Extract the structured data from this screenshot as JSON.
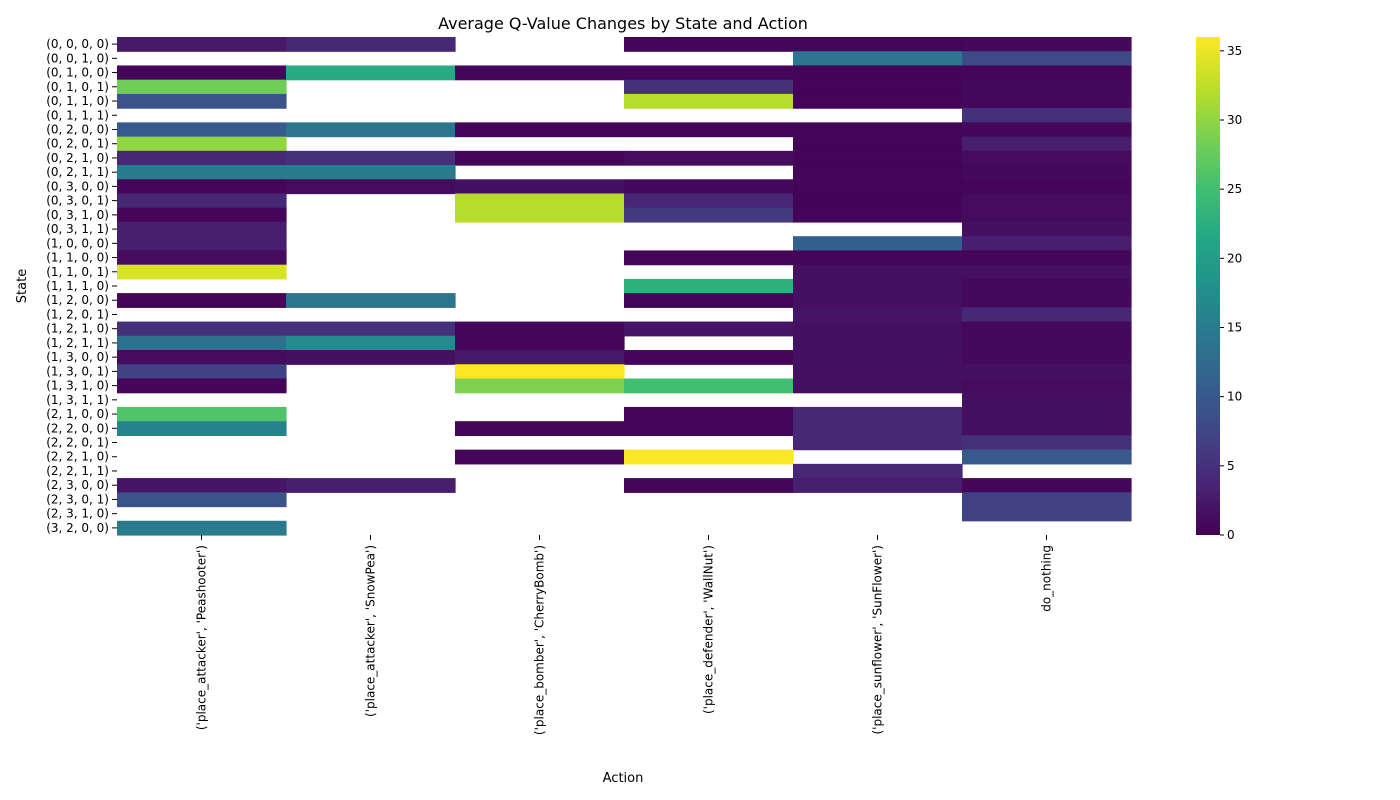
{
  "chart_data": {
    "type": "heatmap",
    "title": "Average Q-Value Changes by State and Action",
    "xlabel": "Action",
    "ylabel": "State",
    "colormap": "viridis",
    "colorbar": {
      "min": 0,
      "max": 36,
      "ticks": [
        0,
        5,
        10,
        15,
        20,
        25,
        30,
        35
      ]
    },
    "actions": [
      "('place_attacker', 'Peashooter')",
      "('place_attacker', 'SnowPea')",
      "('place_bomber', 'CherryBomb')",
      "('place_defender', 'WallNut')",
      "('place_sunflower', 'SunFlower')",
      "do_nothing"
    ],
    "states": [
      "(0, 0, 0, 0)",
      "(0, 0, 1, 0)",
      "(0, 1, 0, 0)",
      "(0, 1, 0, 1)",
      "(0, 1, 1, 0)",
      "(0, 1, 1, 1)",
      "(0, 2, 0, 0)",
      "(0, 2, 0, 1)",
      "(0, 2, 1, 0)",
      "(0, 2, 1, 1)",
      "(0, 3, 0, 0)",
      "(0, 3, 0, 1)",
      "(0, 3, 1, 0)",
      "(0, 3, 1, 1)",
      "(1, 0, 0, 0)",
      "(1, 1, 0, 0)",
      "(1, 1, 0, 1)",
      "(1, 1, 1, 0)",
      "(1, 2, 0, 0)",
      "(1, 2, 0, 1)",
      "(1, 2, 1, 0)",
      "(1, 2, 1, 1)",
      "(1, 3, 0, 0)",
      "(1, 3, 0, 1)",
      "(1, 3, 1, 0)",
      "(1, 3, 1, 1)",
      "(2, 1, 0, 0)",
      "(2, 2, 0, 0)",
      "(2, 2, 0, 1)",
      "(2, 2, 1, 0)",
      "(2, 2, 1, 1)",
      "(2, 3, 0, 0)",
      "(2, 3, 0, 1)",
      "(2, 3, 1, 0)",
      "(3, 2, 0, 0)"
    ],
    "values": [
      [
        2.5,
        4,
        null,
        0.5,
        0.5,
        0.8
      ],
      [
        null,
        null,
        null,
        null,
        14,
        8
      ],
      [
        0.5,
        22,
        0.5,
        0.5,
        0.3,
        0.5
      ],
      [
        28,
        null,
        null,
        5,
        0.3,
        0.8
      ],
      [
        9,
        null,
        null,
        32,
        0.3,
        0.8
      ],
      [
        null,
        null,
        null,
        null,
        null,
        5
      ],
      [
        10,
        14,
        0.5,
        0.3,
        0.5,
        0.5
      ],
      [
        30,
        null,
        null,
        null,
        0.3,
        3
      ],
      [
        4,
        5,
        0.5,
        1,
        0.3,
        1
      ],
      [
        15,
        15,
        null,
        null,
        0.3,
        0.8
      ],
      [
        0.5,
        1,
        1.5,
        0.8,
        0.3,
        0.5
      ],
      [
        4,
        null,
        32,
        4,
        0.3,
        1
      ],
      [
        0.5,
        null,
        32,
        6,
        0.3,
        1
      ],
      [
        3,
        null,
        null,
        null,
        null,
        1.5
      ],
      [
        3,
        null,
        null,
        null,
        11,
        3
      ],
      [
        1,
        null,
        null,
        0.5,
        0.5,
        0.5
      ],
      [
        34,
        null,
        null,
        null,
        1.5,
        1.5
      ],
      [
        null,
        null,
        null,
        23,
        1.5,
        0.8
      ],
      [
        0.5,
        14,
        null,
        0.5,
        1.5,
        0.8
      ],
      [
        null,
        null,
        null,
        null,
        2,
        4
      ],
      [
        5,
        5,
        0.5,
        2,
        1.5,
        0.8
      ],
      [
        13,
        17,
        0.5,
        null,
        1.5,
        0.8
      ],
      [
        1,
        1.5,
        2.5,
        0.5,
        1.5,
        0.8
      ],
      [
        7,
        null,
        36,
        null,
        1.5,
        1.5
      ],
      [
        0.5,
        null,
        29,
        25,
        1.5,
        1
      ],
      [
        null,
        null,
        null,
        null,
        null,
        1.5
      ],
      [
        26,
        null,
        null,
        0.5,
        4,
        1.5
      ],
      [
        16,
        null,
        0.5,
        0.5,
        4,
        1.5
      ],
      [
        null,
        null,
        null,
        null,
        4,
        5
      ],
      [
        null,
        null,
        0.5,
        36,
        null,
        10
      ],
      [
        null,
        null,
        null,
        null,
        4,
        null
      ],
      [
        2,
        3,
        null,
        0.5,
        3,
        0.5
      ],
      [
        9,
        null,
        null,
        null,
        null,
        7
      ],
      [
        null,
        null,
        null,
        null,
        null,
        7
      ],
      [
        15,
        null,
        null,
        null,
        null,
        null
      ]
    ],
    "grid": false,
    "legend": "colorbar-right"
  }
}
